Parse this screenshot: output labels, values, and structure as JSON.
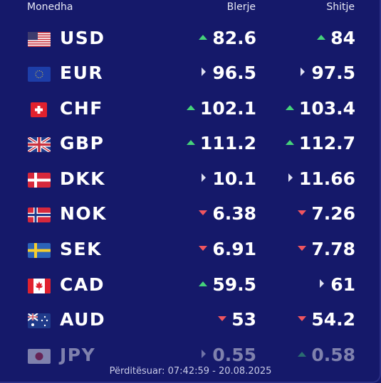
{
  "header": {
    "currency": "Monedha",
    "buy": "Blerje",
    "sell": "Shitje"
  },
  "colors": {
    "up": "#45d27a",
    "down": "#f0555f",
    "same": "#dfe1f2",
    "background": "#15196a"
  },
  "rates": [
    {
      "code": "USD",
      "flag": "us-flag",
      "buy": "82.6",
      "buy_trend": "up",
      "sell": "84",
      "sell_trend": "up"
    },
    {
      "code": "EUR",
      "flag": "eu-flag",
      "buy": "96.5",
      "buy_trend": "same",
      "sell": "97.5",
      "sell_trend": "same"
    },
    {
      "code": "CHF",
      "flag": "ch-flag",
      "buy": "102.1",
      "buy_trend": "up",
      "sell": "103.4",
      "sell_trend": "up"
    },
    {
      "code": "GBP",
      "flag": "gb-flag",
      "buy": "111.2",
      "buy_trend": "up",
      "sell": "112.7",
      "sell_trend": "up"
    },
    {
      "code": "DKK",
      "flag": "dk-flag",
      "buy": "10.1",
      "buy_trend": "same",
      "sell": "11.66",
      "sell_trend": "same"
    },
    {
      "code": "NOK",
      "flag": "no-flag",
      "buy": "6.38",
      "buy_trend": "down",
      "sell": "7.26",
      "sell_trend": "down"
    },
    {
      "code": "SEK",
      "flag": "se-flag",
      "buy": "6.91",
      "buy_trend": "down",
      "sell": "7.78",
      "sell_trend": "down"
    },
    {
      "code": "CAD",
      "flag": "ca-flag",
      "buy": "59.5",
      "buy_trend": "up",
      "sell": "61",
      "sell_trend": "same"
    },
    {
      "code": "AUD",
      "flag": "au-flag",
      "buy": "53",
      "buy_trend": "down",
      "sell": "54.2",
      "sell_trend": "down"
    },
    {
      "code": "JPY",
      "flag": "jp-flag",
      "buy": "0.55",
      "buy_trend": "same",
      "sell": "0.58",
      "sell_trend": "up"
    }
  ],
  "footer": {
    "updated": "Përditësuar: 07:42:59 - 20.08.2025"
  }
}
